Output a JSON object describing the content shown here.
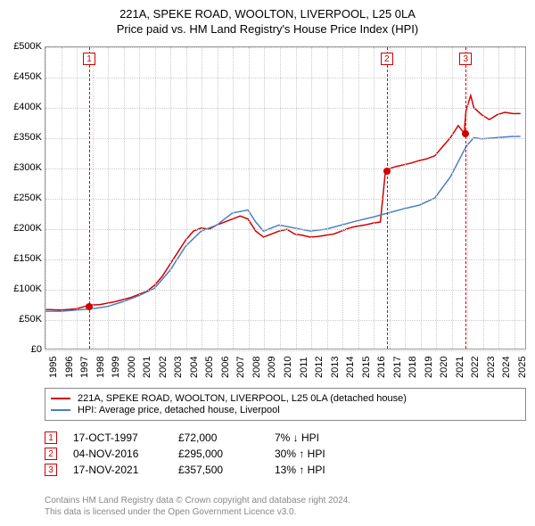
{
  "title": {
    "line1": "221A, SPEKE ROAD, WOOLTON, LIVERPOOL, L25 0LA",
    "line2": "Price paid vs. HM Land Registry's House Price Index (HPI)"
  },
  "chart": {
    "type": "line",
    "background_color": "#ffffff",
    "grid_color": "#cccccc",
    "border_color": "#999999",
    "x": {
      "min": 1995,
      "max": 2025.8,
      "ticks": [
        1995,
        1996,
        1997,
        1998,
        1999,
        2000,
        2001,
        2002,
        2003,
        2004,
        2005,
        2006,
        2007,
        2008,
        2009,
        2010,
        2011,
        2012,
        2013,
        2014,
        2015,
        2016,
        2017,
        2018,
        2019,
        2020,
        2021,
        2022,
        2023,
        2024,
        2025
      ]
    },
    "y": {
      "min": 0,
      "max": 500000,
      "prefix": "£",
      "unit_suffix": "K",
      "ticks": [
        0,
        50000,
        100000,
        150000,
        200000,
        250000,
        300000,
        350000,
        400000,
        450000,
        500000
      ]
    },
    "series": [
      {
        "id": "property",
        "label": "221A, SPEKE ROAD, WOOLTON, LIVERPOOL, L25 0LA (detached house)",
        "color": "#d00000",
        "line_width": 1.5,
        "points": [
          [
            1995.0,
            65000
          ],
          [
            1996.0,
            64000
          ],
          [
            1997.0,
            66000
          ],
          [
            1997.8,
            72000
          ],
          [
            1998.5,
            73000
          ],
          [
            1999.5,
            78000
          ],
          [
            2000.5,
            85000
          ],
          [
            2001.5,
            95000
          ],
          [
            2002.0,
            105000
          ],
          [
            2002.5,
            120000
          ],
          [
            2003.0,
            140000
          ],
          [
            2003.5,
            160000
          ],
          [
            2004.0,
            180000
          ],
          [
            2004.5,
            195000
          ],
          [
            2005.0,
            200000
          ],
          [
            2005.5,
            198000
          ],
          [
            2006.0,
            205000
          ],
          [
            2006.5,
            210000
          ],
          [
            2007.0,
            215000
          ],
          [
            2007.5,
            220000
          ],
          [
            2008.0,
            215000
          ],
          [
            2008.5,
            195000
          ],
          [
            2009.0,
            185000
          ],
          [
            2009.5,
            190000
          ],
          [
            2010.0,
            195000
          ],
          [
            2010.5,
            198000
          ],
          [
            2011.0,
            190000
          ],
          [
            2011.5,
            188000
          ],
          [
            2012.0,
            185000
          ],
          [
            2012.5,
            186000
          ],
          [
            2013.0,
            188000
          ],
          [
            2013.5,
            190000
          ],
          [
            2014.0,
            195000
          ],
          [
            2014.5,
            200000
          ],
          [
            2015.0,
            203000
          ],
          [
            2015.5,
            205000
          ],
          [
            2016.0,
            208000
          ],
          [
            2016.5,
            210000
          ],
          [
            2016.83,
            295000
          ],
          [
            2017.0,
            298000
          ],
          [
            2017.5,
            302000
          ],
          [
            2018.0,
            305000
          ],
          [
            2018.5,
            308000
          ],
          [
            2019.0,
            312000
          ],
          [
            2019.5,
            315000
          ],
          [
            2020.0,
            320000
          ],
          [
            2020.5,
            335000
          ],
          [
            2021.0,
            350000
          ],
          [
            2021.5,
            370000
          ],
          [
            2021.88,
            357500
          ],
          [
            2022.0,
            395000
          ],
          [
            2022.3,
            420000
          ],
          [
            2022.5,
            400000
          ],
          [
            2023.0,
            388000
          ],
          [
            2023.5,
            380000
          ],
          [
            2024.0,
            388000
          ],
          [
            2024.5,
            392000
          ],
          [
            2025.0,
            390000
          ],
          [
            2025.5,
            390000
          ]
        ]
      },
      {
        "id": "hpi",
        "label": "HPI: Average price, detached house, Liverpool",
        "color": "#4a7fc4",
        "line_width": 1.5,
        "points": [
          [
            1995.0,
            62000
          ],
          [
            1996.0,
            62000
          ],
          [
            1997.0,
            64000
          ],
          [
            1998.0,
            66000
          ],
          [
            1999.0,
            70000
          ],
          [
            2000.0,
            78000
          ],
          [
            2001.0,
            88000
          ],
          [
            2002.0,
            100000
          ],
          [
            2003.0,
            130000
          ],
          [
            2004.0,
            170000
          ],
          [
            2005.0,
            195000
          ],
          [
            2006.0,
            205000
          ],
          [
            2007.0,
            225000
          ],
          [
            2008.0,
            230000
          ],
          [
            2008.5,
            210000
          ],
          [
            2009.0,
            195000
          ],
          [
            2010.0,
            205000
          ],
          [
            2011.0,
            200000
          ],
          [
            2012.0,
            195000
          ],
          [
            2013.0,
            198000
          ],
          [
            2014.0,
            205000
          ],
          [
            2015.0,
            212000
          ],
          [
            2016.0,
            218000
          ],
          [
            2017.0,
            225000
          ],
          [
            2018.0,
            232000
          ],
          [
            2019.0,
            238000
          ],
          [
            2020.0,
            250000
          ],
          [
            2021.0,
            285000
          ],
          [
            2022.0,
            335000
          ],
          [
            2022.5,
            350000
          ],
          [
            2023.0,
            348000
          ],
          [
            2024.0,
            350000
          ],
          [
            2025.0,
            352000
          ],
          [
            2025.5,
            352000
          ]
        ]
      }
    ],
    "markers": [
      {
        "n": "1",
        "year": 1997.8,
        "value": 72000,
        "color": "#d00000"
      },
      {
        "n": "2",
        "year": 2016.83,
        "value": 295000,
        "color": "#d00000"
      },
      {
        "n": "3",
        "year": 2021.88,
        "value": 357500,
        "color": "#d00000"
      }
    ]
  },
  "sales": [
    {
      "n": "1",
      "date": "17-OCT-1997",
      "price": "£72,000",
      "diff": "7% ↓ HPI"
    },
    {
      "n": "2",
      "date": "04-NOV-2016",
      "price": "£295,000",
      "diff": "30% ↑ HPI"
    },
    {
      "n": "3",
      "date": "17-NOV-2021",
      "price": "£357,500",
      "diff": "13% ↑ HPI"
    }
  ],
  "footer": {
    "line1": "Contains HM Land Registry data © Crown copyright and database right 2024.",
    "line2": "This data is licensed under the Open Government Licence v3.0."
  }
}
